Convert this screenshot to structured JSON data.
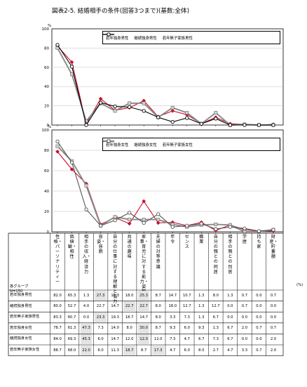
{
  "title": "図表2-5. 結婚相手の条件(回答3つまで)(基数:全体)",
  "percent_unit": "%",
  "group_header": "各グループ",
  "group_n": "N=150",
  "table_unit": "(%)",
  "categories": [
    "性格・パーソナリティー",
    "価値観・相性",
    "相手の収入・経済力",
    "容姿・容貌",
    "自分の仕事に対する理解と協力",
    "共通の趣味",
    "家事・育児に対する能力・姿勢",
    "夫婦の対等意識",
    "年令",
    "センス",
    "職業",
    "自分の親との同居",
    "相手の親との別居",
    "学歴",
    "持ち家",
    "財産・貯蓄額"
  ],
  "chart_data": [
    {
      "type": "line",
      "y_axis_label": "%",
      "ylim": [
        0,
        100
      ],
      "yticks": [
        0,
        20,
        40,
        60,
        80,
        100
      ],
      "grid": true,
      "legend_position": "top",
      "series": [
        {
          "name": "若年独身男性",
          "color": "#c8102e",
          "marker": "diamond",
          "values": [
            82.0,
            65.3,
            1.3,
            27.3,
            15.3,
            18.0,
            25.3,
            8.7,
            14.7,
            10.7,
            1.3,
            8.0,
            1.3,
            0.7,
            0.0,
            0.7
          ]
        },
        {
          "name": "継続独身男性",
          "color": "#8a8a8a",
          "marker": "square",
          "values": [
            80.0,
            52.7,
            4.0,
            22.7,
            14.7,
            22.7,
            22.7,
            8.0,
            18.0,
            12.7,
            1.3,
            12.7,
            0.0,
            0.7,
            0.0,
            0.0
          ]
        },
        {
          "name": "若年無子家族男性",
          "color": "#000000",
          "marker": "circle",
          "values": [
            83.3,
            60.7,
            0.0,
            23.3,
            19.3,
            18.7,
            14.7,
            8.0,
            3.3,
            7.3,
            1.3,
            6.7,
            0.0,
            0.0,
            0.0,
            0.0
          ]
        }
      ]
    },
    {
      "type": "line",
      "y_axis_label": "%",
      "ylim": [
        0,
        100
      ],
      "yticks": [
        0,
        20,
        40,
        60,
        80,
        100
      ],
      "grid": true,
      "legend_position": "top",
      "series": [
        {
          "name": "若年独身女性",
          "color": "#c8102e",
          "marker": "diamond",
          "values": [
            78.7,
            61.3,
            47.3,
            7.3,
            14.0,
            8.0,
            30.0,
            8.7,
            9.3,
            6.0,
            9.3,
            1.3,
            6.7,
            2.0,
            0.7,
            0.7
          ]
        },
        {
          "name": "継続独身女性",
          "color": "#8a8a8a",
          "marker": "square",
          "values": [
            84.0,
            69.3,
            45.3,
            6.0,
            14.7,
            12.0,
            12.0,
            12.0,
            7.3,
            4.7,
            6.7,
            7.3,
            6.7,
            0.0,
            0.0,
            2.0
          ]
        },
        {
          "name": "若年無子家族女性",
          "color": "#555555",
          "marker": "circle",
          "values": [
            88.7,
            68.0,
            22.0,
            6.0,
            11.3,
            18.7,
            8.7,
            17.3,
            4.7,
            6.0,
            8.0,
            2.7,
            4.7,
            3.3,
            0.7,
            2.0
          ]
        }
      ]
    }
  ],
  "table": {
    "rows": [
      {
        "label": "若年独身男性",
        "values": [
          "82.0",
          "65.3",
          "1.3",
          "27.3",
          "15.3",
          "18.0",
          "25.3",
          "8.7",
          "14.7",
          "10.7",
          "1.3",
          "8.0",
          "1.3",
          "0.7",
          "0.0",
          "0.7"
        ]
      },
      {
        "label": "継続独身男性",
        "values": [
          "80.0",
          "52.7",
          "4.0",
          "22.7",
          "14.7",
          "22.7",
          "22.7",
          "8.0",
          "18.0",
          "12.7",
          "1.3",
          "12.7",
          "0.0",
          "0.7",
          "0.0",
          "0.0"
        ]
      },
      {
        "label": "若年無子家族男性",
        "values": [
          "83.3",
          "60.7",
          "0.0",
          "23.3",
          "19.3",
          "18.7",
          "14.7",
          "8.0",
          "3.3",
          "7.3",
          "1.3",
          "6.7",
          "0.0",
          "0.0",
          "0.0",
          "0.0"
        ]
      },
      {
        "label": "若年独身女性",
        "values": [
          "78.7",
          "61.3",
          "47.3",
          "7.3",
          "14.0",
          "8.0",
          "30.0",
          "8.7",
          "9.3",
          "6.0",
          "9.3",
          "1.3",
          "6.7",
          "2.0",
          "0.7",
          "0.7"
        ]
      },
      {
        "label": "継続独身女性",
        "values": [
          "84.0",
          "69.3",
          "45.3",
          "6.0",
          "14.7",
          "12.0",
          "12.0",
          "12.0",
          "7.3",
          "4.7",
          "6.7",
          "7.3",
          "6.7",
          "0.0",
          "0.0",
          "2.0"
        ]
      },
      {
        "label": "若年無子家族女性",
        "values": [
          "88.7",
          "68.0",
          "22.0",
          "6.0",
          "11.3",
          "18.7",
          "8.7",
          "17.3",
          "4.7",
          "6.0",
          "8.0",
          "2.7",
          "4.7",
          "3.3",
          "0.7",
          "2.0"
        ]
      }
    ],
    "shaded": [
      [
        0,
        3
      ],
      [
        0,
        6
      ],
      [
        1,
        5
      ],
      [
        1,
        6
      ],
      [
        2,
        3
      ],
      [
        3,
        2
      ],
      [
        3,
        6
      ],
      [
        4,
        2
      ],
      [
        4,
        6
      ],
      [
        5,
        2
      ],
      [
        5,
        5
      ],
      [
        5,
        7
      ]
    ]
  }
}
